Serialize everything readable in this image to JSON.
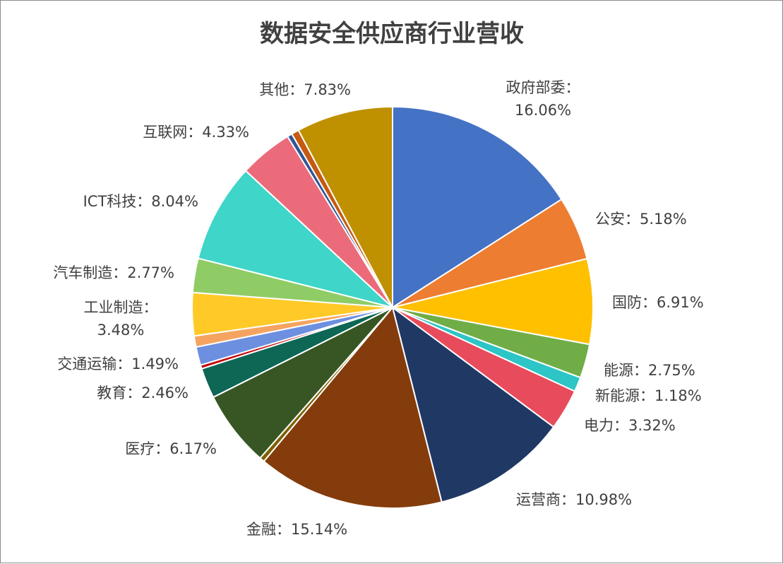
{
  "chart_data": {
    "type": "pie",
    "title": "数据安全供应商行业营收",
    "slices": [
      {
        "name": "政府部委",
        "value": 16.06,
        "label": "政府部委：",
        "pct": "16.06%",
        "color": "#4472C4"
      },
      {
        "name": "公安",
        "value": 5.18,
        "label": "公安：",
        "pct": "5.18%",
        "color": "#ED7D31"
      },
      {
        "name": "国防",
        "value": 6.91,
        "label": "国防：",
        "pct": "6.91%",
        "color": "#FFC000"
      },
      {
        "name": "能源",
        "value": 2.75,
        "label": "能源：",
        "pct": "2.75%",
        "color": "#70AD47"
      },
      {
        "name": "新能源",
        "value": 1.18,
        "label": "新能源：",
        "pct": "1.18%",
        "color": "#2DC5C5"
      },
      {
        "name": "电力",
        "value": 3.32,
        "label": "电力：",
        "pct": "3.32%",
        "color": "#E84B5C"
      },
      {
        "name": "运营商",
        "value": 10.98,
        "label": "运营商：",
        "pct": "10.98%",
        "color": "#203864"
      },
      {
        "name": "金融",
        "value": 15.14,
        "label": "金融：",
        "pct": "15.14%",
        "color": "#843C0C"
      },
      {
        "name": "",
        "value": 0.4,
        "label": "",
        "pct": "",
        "color": "#7F6000"
      },
      {
        "name": "医疗",
        "value": 6.17,
        "label": "医疗：",
        "pct": "6.17%",
        "color": "#375623"
      },
      {
        "name": "教育",
        "value": 2.46,
        "label": "教育：",
        "pct": "2.46%",
        "color": "#0E6655"
      },
      {
        "name": "",
        "value": 0.3,
        "label": "",
        "pct": "",
        "color": "#C00000"
      },
      {
        "name": "交通运输",
        "value": 1.49,
        "label": "交通运输：",
        "pct": "1.49%",
        "color": "#6D8FE0"
      },
      {
        "name": "",
        "value": 0.9,
        "label": "",
        "pct": "",
        "color": "#F4A460"
      },
      {
        "name": "工业制造",
        "value": 3.48,
        "label": "工业制造：",
        "pct": "3.48%",
        "color": "#FFCA28"
      },
      {
        "name": "汽车制造",
        "value": 2.77,
        "label": "汽车制造：",
        "pct": "2.77%",
        "color": "#8FCC65"
      },
      {
        "name": "ICT科技",
        "value": 8.04,
        "label": "ICT科技：",
        "pct": "8.04%",
        "color": "#3FD5C9"
      },
      {
        "name": "互联网",
        "value": 4.33,
        "label": "互联网：",
        "pct": "4.33%",
        "color": "#EC6B7A"
      },
      {
        "name": "",
        "value": 0.4,
        "label": "",
        "pct": "",
        "color": "#2F5597"
      },
      {
        "name": "",
        "value": 0.61,
        "label": "",
        "pct": "",
        "color": "#C55A11"
      },
      {
        "name": "其他",
        "value": 7.83,
        "label": "其他：",
        "pct": "7.83%",
        "color": "#BF9000"
      }
    ]
  }
}
